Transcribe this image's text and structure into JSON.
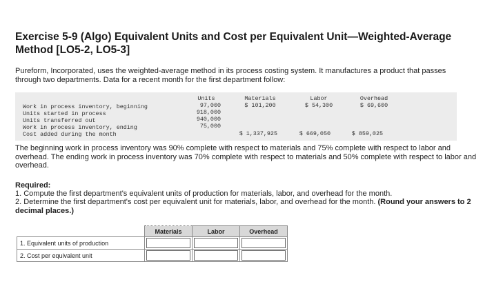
{
  "title": "Exercise 5-9 (Algo) Equivalent Units and Cost per Equivalent Unit—Weighted-Average Method [LO5-2, LO5-3]",
  "intro": "Pureform, Incorporated, uses the weighted-average method in its process costing system. It manufactures a product that passes through two departments. Data for a recent month for the first department follow:",
  "data_table": {
    "headers": {
      "units": "Units",
      "materials": "Materials",
      "labor": "Labor",
      "overhead": "Overhead"
    },
    "rows": [
      {
        "label": "Work in process inventory, beginning",
        "units": "97,000",
        "materials": "$ 101,200",
        "labor": "$ 54,300",
        "overhead": "$ 69,600"
      },
      {
        "label": "Units started in process",
        "units": "918,000",
        "materials": "",
        "labor": "",
        "overhead": ""
      },
      {
        "label": "Units transferred out",
        "units": "940,000",
        "materials": "",
        "labor": "",
        "overhead": ""
      },
      {
        "label": "Work in process inventory, ending",
        "units": "75,000",
        "materials": "",
        "labor": "",
        "overhead": ""
      },
      {
        "label": "Cost added during the month",
        "units": "",
        "materials": "$ 1,337,925",
        "labor": "$ 669,050",
        "overhead": "$ 859,025"
      }
    ]
  },
  "paragraph": "The beginning work in process inventory was 90% complete with respect to materials and 75% complete with respect to labor and overhead. The ending work in process inventory was 70% complete with respect to materials and 50% complete with respect to labor and overhead.",
  "required": {
    "label": "Required:",
    "item1": "1. Compute the first department's equivalent units of production for materials, labor, and overhead for the month.",
    "item2_text": "2. Determine the first department's cost per equivalent unit for materials, labor, and overhead for the month.",
    "item2_bold": "(Round your answers to 2 decimal places.)"
  },
  "answer_table": {
    "headers": [
      "Materials",
      "Labor",
      "Overhead"
    ],
    "rows": [
      {
        "label": "1. Equivalent units of production"
      },
      {
        "label": "2. Cost per equivalent unit"
      }
    ]
  }
}
